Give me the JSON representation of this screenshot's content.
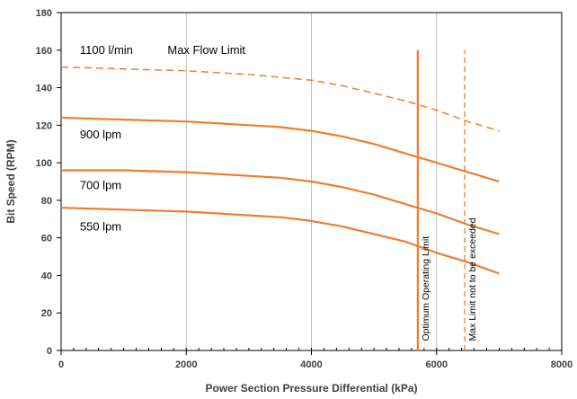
{
  "chart_data": {
    "type": "line",
    "title": "",
    "xlabel": "Power Section Pressure Differential (kPa)",
    "ylabel": "Bit Speed (RPM)",
    "xlim": [
      0,
      8000
    ],
    "ylim": [
      0,
      180
    ],
    "xticks": [
      0,
      2000,
      4000,
      6000,
      8000
    ],
    "yticks": [
      0,
      20,
      40,
      60,
      80,
      100,
      120,
      140,
      160,
      180
    ],
    "grid": "vertical",
    "legend": "none",
    "series": [
      {
        "name": "1100 l/min",
        "style": "dashed",
        "color": "#ED7D31",
        "x": [
          0,
          1000,
          2000,
          3000,
          4000,
          4500,
          5000,
          5500,
          6000,
          6500,
          7000
        ],
        "y": [
          151,
          150,
          149,
          147,
          144,
          141,
          137,
          133,
          128,
          122,
          117
        ]
      },
      {
        "name": "900 lpm",
        "style": "solid",
        "color": "#ED7D31",
        "x": [
          0,
          1000,
          2000,
          3000,
          3500,
          4000,
          4500,
          5000,
          5500,
          6000,
          6500,
          7000
        ],
        "y": [
          124,
          123,
          122,
          120,
          119,
          117,
          114,
          110,
          105,
          100,
          95,
          90
        ]
      },
      {
        "name": "700 lpm",
        "style": "solid",
        "color": "#ED7D31",
        "x": [
          0,
          1000,
          2000,
          3000,
          3500,
          4000,
          4500,
          5000,
          5500,
          6000,
          6500,
          7000
        ],
        "y": [
          96,
          96,
          95,
          93,
          92,
          90,
          87,
          83,
          78,
          73,
          67,
          62
        ]
      },
      {
        "name": "550 lpm",
        "style": "solid",
        "color": "#ED7D31",
        "x": [
          0,
          1000,
          2000,
          3000,
          3500,
          4000,
          4500,
          5000,
          5500,
          6000,
          6500,
          7000
        ],
        "y": [
          76,
          75,
          74,
          72,
          71,
          69,
          66,
          62,
          58,
          52,
          47,
          41
        ]
      }
    ],
    "vlines": [
      {
        "x": 5700,
        "y": [
          0,
          160
        ],
        "style": "solid",
        "color": "#ED7D31",
        "label": "Optimum Operating Limit"
      },
      {
        "x": 6450,
        "y": [
          0,
          160
        ],
        "style": "dashed",
        "color": "#ED7D31",
        "label": "Max Limit not to be exceeded"
      }
    ],
    "annotations": [
      {
        "text": "1100 l/min",
        "x": 300,
        "y": 158
      },
      {
        "text": "Max Flow Limit",
        "x": 1700,
        "y": 158
      },
      {
        "text": "900 lpm",
        "x": 300,
        "y": 113
      },
      {
        "text": "700 lpm",
        "x": 300,
        "y": 86
      },
      {
        "text": "550 lpm",
        "x": 300,
        "y": 64
      }
    ]
  }
}
